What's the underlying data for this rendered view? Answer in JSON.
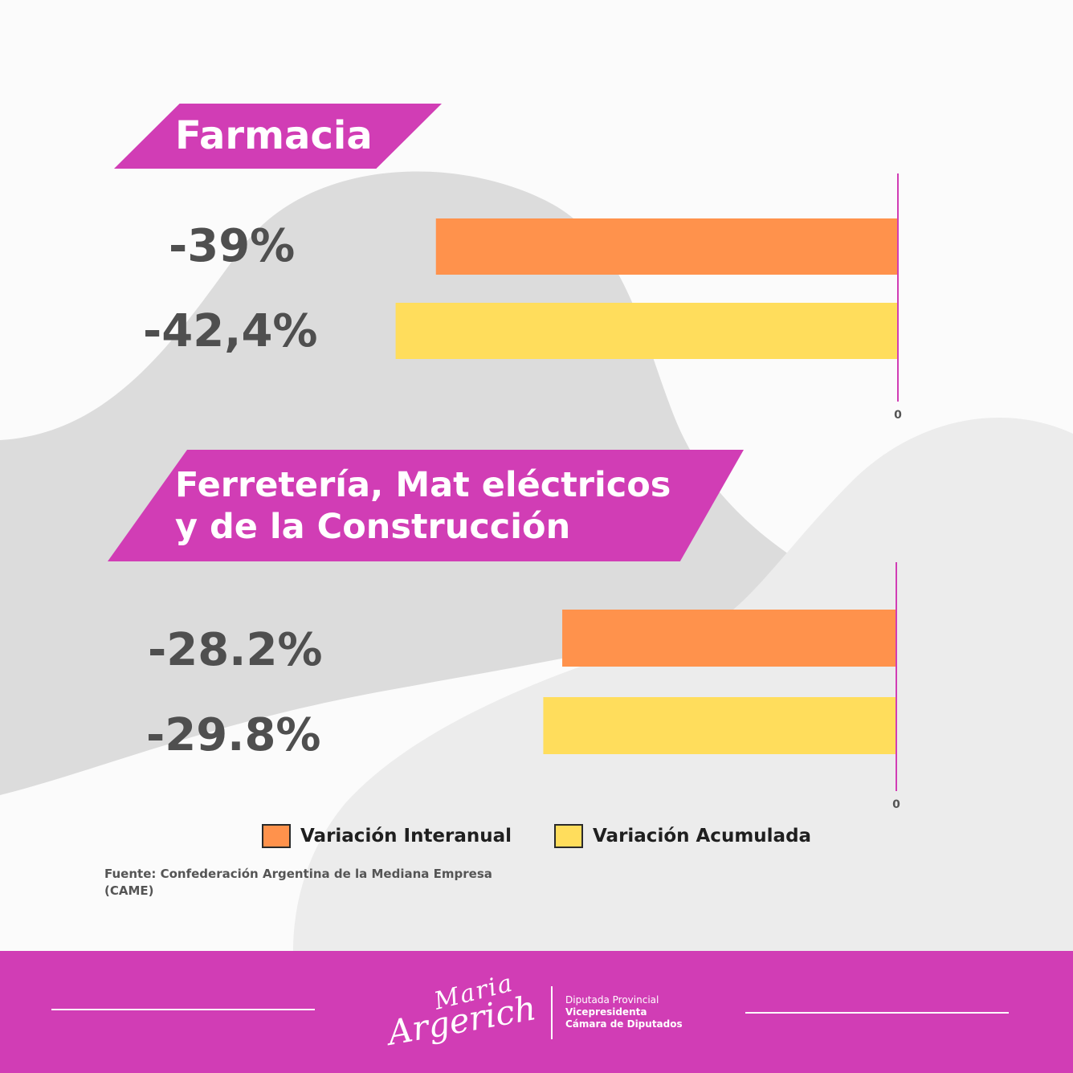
{
  "title": "",
  "colors": {
    "interanual": "#ff924c",
    "acumulada": "#ffdd5c",
    "accent": "#d13db5",
    "value_text": "#4f4f4f"
  },
  "legend": {
    "interanual": "Variación Interanual",
    "acumulada": "Variación Acumulada"
  },
  "source": {
    "line1": "Fuente:  Confederación Argentina de la Mediana Empresa",
    "line2": "(CAME)"
  },
  "chart_data": [
    {
      "type": "bar",
      "orientation": "horizontal",
      "title": "Farmacia",
      "categories": [
        "Variación Interanual",
        "Variación Acumulada"
      ],
      "values": [
        -39,
        -42.4
      ],
      "value_labels": [
        "-39%",
        "-42,4%"
      ],
      "unit": "%",
      "zero_tick": "0",
      "xlim": [
        -47,
        0
      ],
      "grid": false
    },
    {
      "type": "bar",
      "orientation": "horizontal",
      "title_line1": "Ferretería, Mat eléctricos",
      "title_line2": "y de la Construcción",
      "categories": [
        "Variación Interanual",
        "Variación Acumulada"
      ],
      "values": [
        -28.2,
        -29.8
      ],
      "value_labels": [
        "-28.2%",
        "-29.8%"
      ],
      "unit": "%",
      "zero_tick": "0",
      "xlim": [
        -47,
        0
      ],
      "grid": false
    }
  ],
  "footer": {
    "signature_line1": "Maria",
    "signature_line2": "Argerich",
    "role1": "Diputada Provincial",
    "role2": "Vicepresidenta",
    "role3": "Cámara de Diputados"
  }
}
